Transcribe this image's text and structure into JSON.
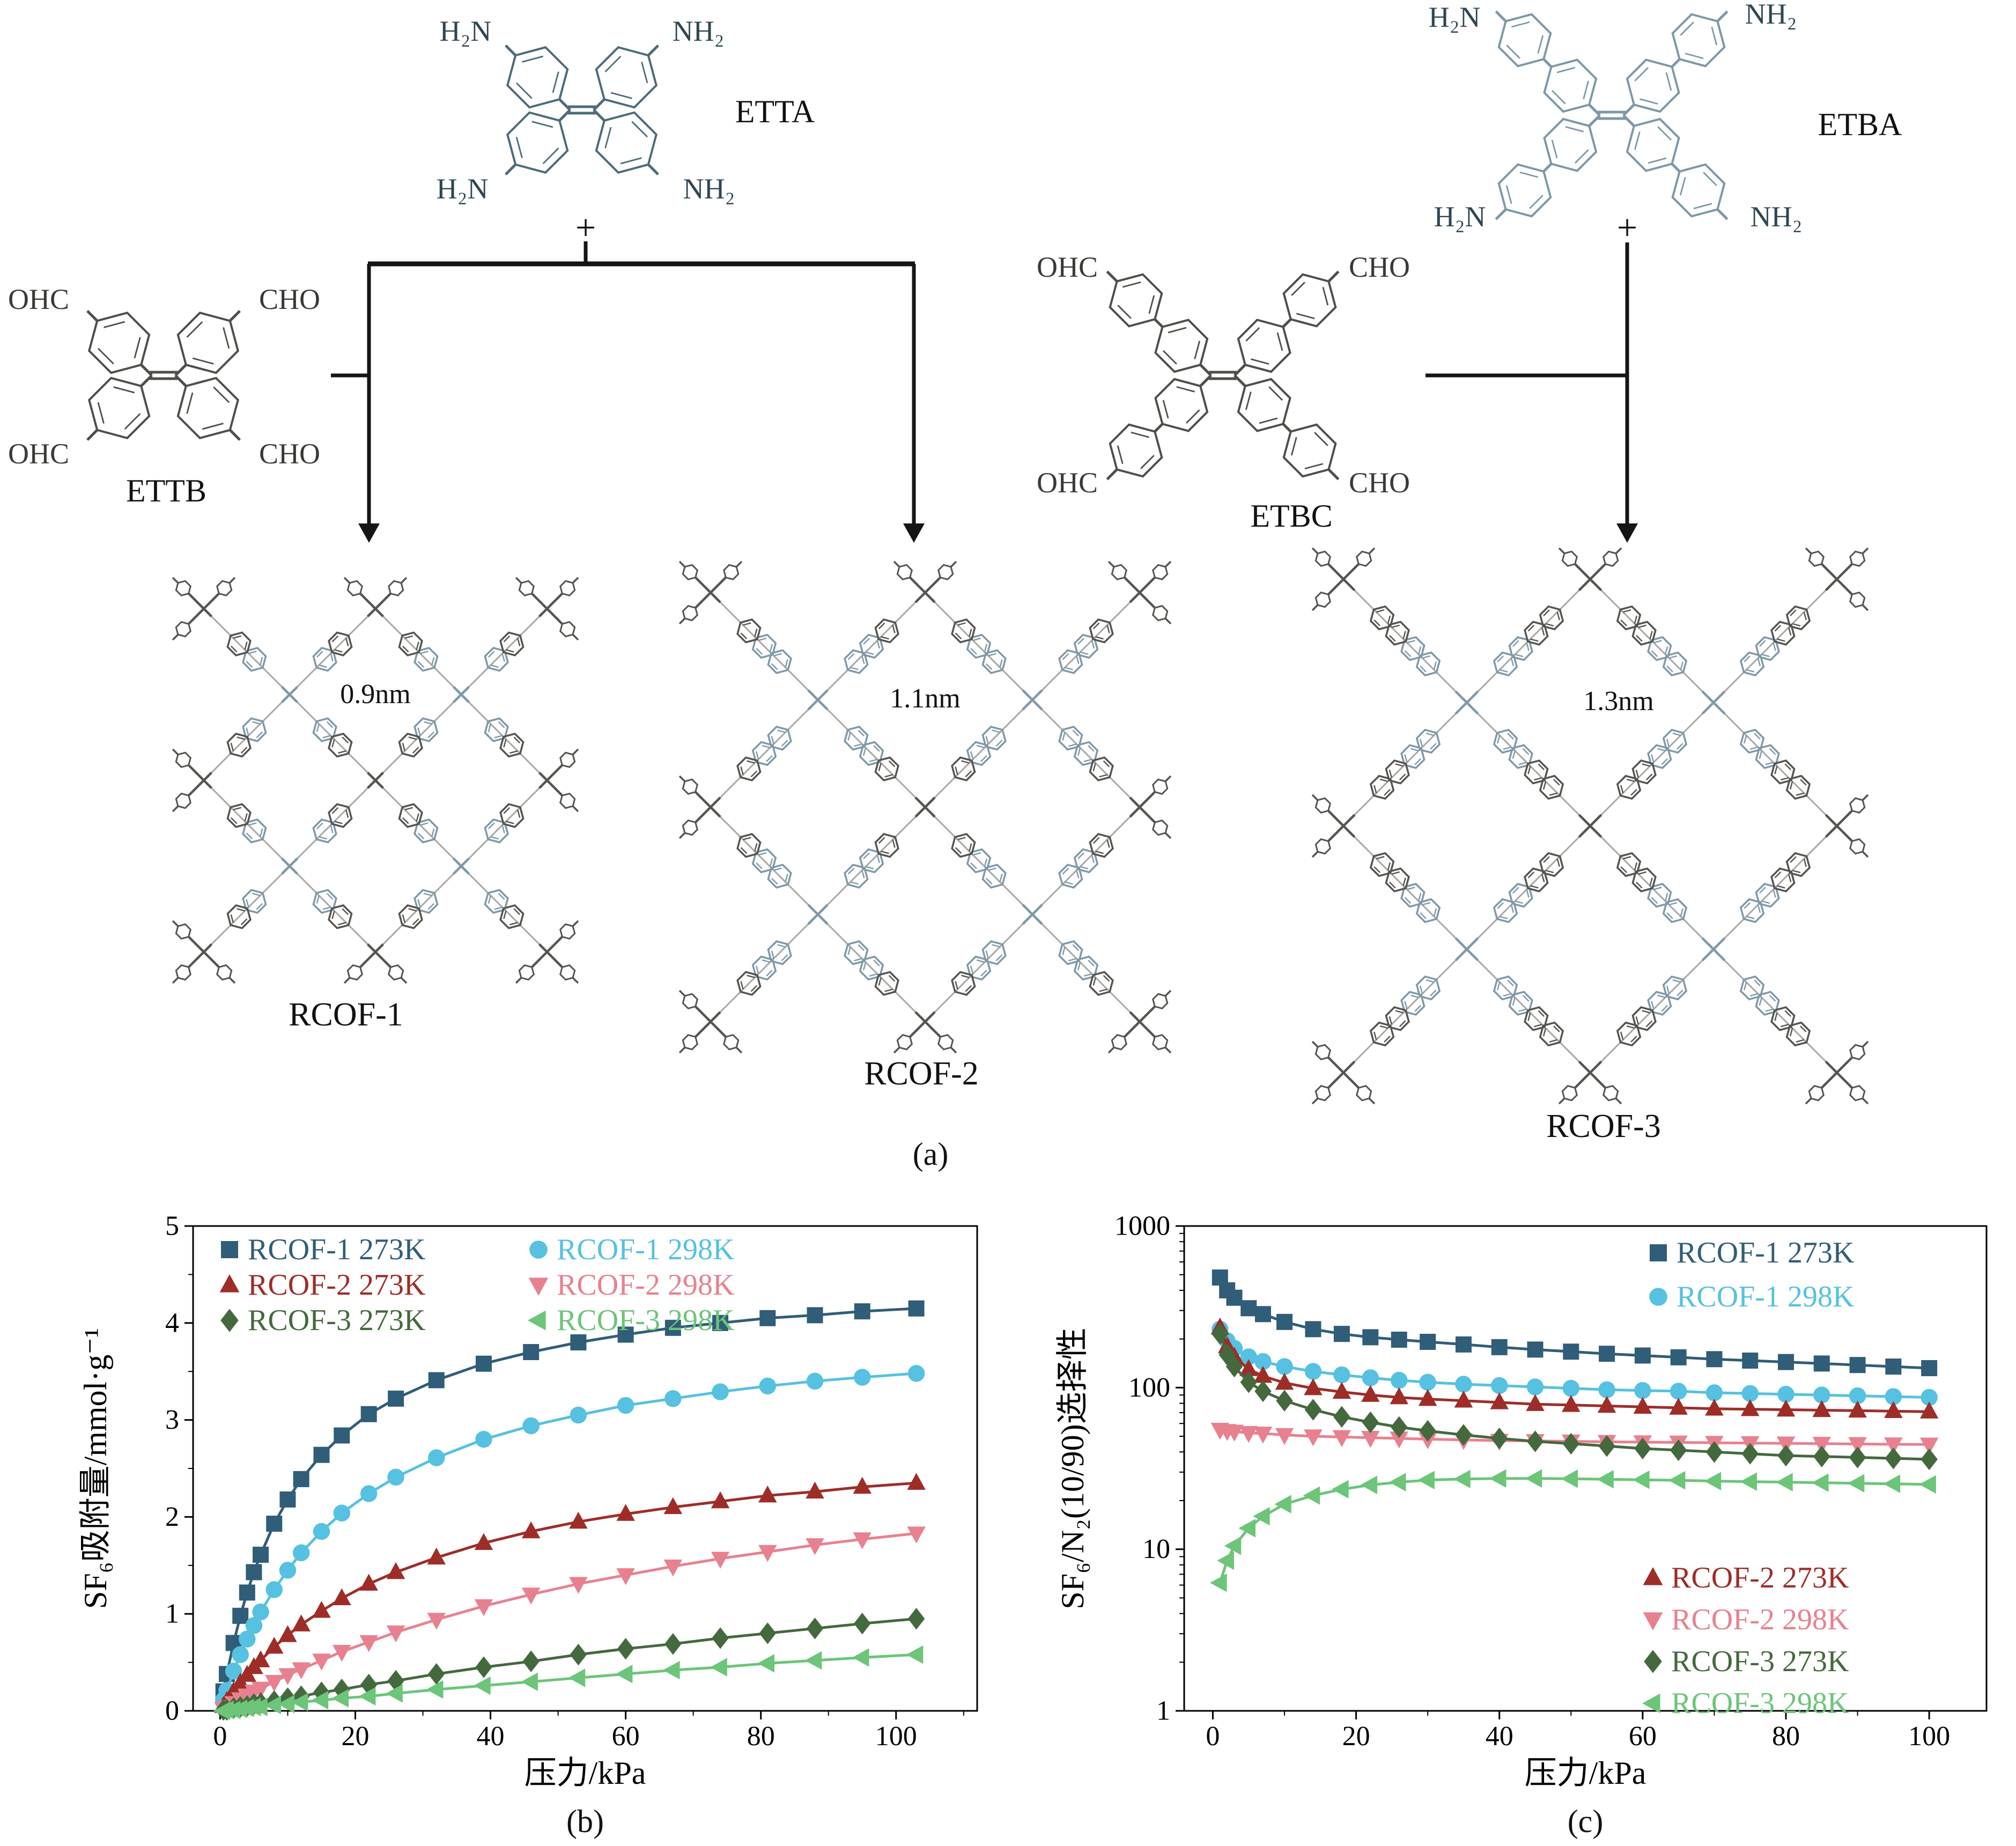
{
  "figure": {
    "caption_a": "(a)",
    "caption_b": "(b)",
    "caption_c": "(c)"
  },
  "panel_a": {
    "molecules": {
      "etta": {
        "name": "ETTA",
        "plus": "+",
        "color": "#4d6b7b",
        "groups": [
          "H₂N",
          "NH₂",
          "H₂N",
          "NH₂"
        ]
      },
      "etba": {
        "name": "ETBA",
        "plus": "+",
        "color": "#7d98a8",
        "groups": [
          "H₂N",
          "NH₂",
          "H₂N",
          "NH₂"
        ]
      },
      "ettb": {
        "name": "ETTB",
        "color": "#504e49",
        "groups": [
          "OHC",
          "CHO",
          "OHC",
          "CHO"
        ]
      },
      "etbc": {
        "name": "ETBC",
        "color": "#504e49",
        "groups": [
          "OHC",
          "CHO",
          "OHC",
          "CHO"
        ]
      }
    },
    "networks": [
      {
        "name": "RCOF-1",
        "pore": "0.9nm"
      },
      {
        "name": "RCOF-2",
        "pore": "1.1nm"
      },
      {
        "name": "RCOF-3",
        "pore": "1.3nm"
      }
    ],
    "colors": {
      "node_gray": "#56544f",
      "node_blue": "#7e99a9",
      "arrow": "#151515"
    }
  },
  "chart_data": [
    {
      "id": "b",
      "type": "line",
      "title": "",
      "xlabel": "压力/kPa",
      "ylabel": "SF₆吸附量/mmol·g⁻¹",
      "yscale": "linear",
      "xlim": [
        -4,
        112
      ],
      "xticks": [
        0,
        20,
        40,
        60,
        80,
        100
      ],
      "xminor": [
        10,
        30,
        50,
        70,
        90,
        110
      ],
      "ylim": [
        0,
        5
      ],
      "yticks": [
        0,
        1,
        2,
        3,
        4,
        5
      ],
      "yminor_step": 0.5,
      "x": [
        0.5,
        1,
        2,
        3,
        4,
        5,
        6,
        8,
        10,
        12,
        15,
        18,
        22,
        26,
        32,
        39,
        46,
        53,
        60,
        67,
        74,
        81,
        88,
        95,
        103
      ],
      "series": [
        {
          "name": "RCOF-1 273K",
          "color": "#305d78",
          "marker": "square",
          "values": [
            0.2,
            0.38,
            0.7,
            0.98,
            1.22,
            1.43,
            1.61,
            1.93,
            2.18,
            2.39,
            2.64,
            2.84,
            3.06,
            3.22,
            3.41,
            3.58,
            3.7,
            3.8,
            3.88,
            3.95,
            4.0,
            4.05,
            4.08,
            4.12,
            4.15
          ]
        },
        {
          "name": "RCOF-1 298K",
          "color": "#56c1e0",
          "marker": "circle",
          "values": [
            0.11,
            0.21,
            0.41,
            0.58,
            0.74,
            0.88,
            1.02,
            1.25,
            1.45,
            1.63,
            1.85,
            2.04,
            2.24,
            2.41,
            2.61,
            2.8,
            2.94,
            3.05,
            3.15,
            3.22,
            3.29,
            3.35,
            3.4,
            3.44,
            3.48
          ]
        },
        {
          "name": "RCOF-2 273K",
          "color": "#9e2d28",
          "marker": "triangle-up",
          "values": [
            0.05,
            0.1,
            0.2,
            0.29,
            0.37,
            0.45,
            0.52,
            0.66,
            0.78,
            0.89,
            1.03,
            1.16,
            1.31,
            1.43,
            1.58,
            1.73,
            1.85,
            1.95,
            2.03,
            2.1,
            2.16,
            2.22,
            2.26,
            2.31,
            2.35
          ]
        },
        {
          "name": "RCOF-2 298K",
          "color": "#e8818f",
          "marker": "triangle-down",
          "values": [
            0.02,
            0.04,
            0.08,
            0.12,
            0.16,
            0.2,
            0.23,
            0.3,
            0.37,
            0.43,
            0.52,
            0.61,
            0.71,
            0.81,
            0.94,
            1.08,
            1.2,
            1.31,
            1.4,
            1.49,
            1.57,
            1.64,
            1.71,
            1.77,
            1.83
          ]
        },
        {
          "name": "RCOF-3 273K",
          "color": "#44693d",
          "marker": "diamond",
          "values": [
            0.01,
            0.01,
            0.03,
            0.04,
            0.05,
            0.07,
            0.08,
            0.1,
            0.13,
            0.15,
            0.19,
            0.22,
            0.27,
            0.31,
            0.38,
            0.45,
            0.51,
            0.58,
            0.64,
            0.69,
            0.75,
            0.8,
            0.85,
            0.9,
            0.95
          ]
        },
        {
          "name": "RCOF-3 298K",
          "color": "#6cc579",
          "marker": "triangle-left",
          "values": [
            0.0,
            0.01,
            0.01,
            0.02,
            0.03,
            0.04,
            0.04,
            0.06,
            0.07,
            0.09,
            0.11,
            0.13,
            0.15,
            0.18,
            0.22,
            0.26,
            0.3,
            0.34,
            0.38,
            0.42,
            0.45,
            0.49,
            0.52,
            0.55,
            0.58
          ]
        }
      ]
    },
    {
      "id": "c",
      "type": "line",
      "title": "",
      "xlabel": "压力/kPa",
      "ylabel": "SF₆/N₂(10/90)选择性",
      "yscale": "log",
      "xlim": [
        -4,
        108
      ],
      "xticks": [
        0,
        20,
        40,
        60,
        80,
        100
      ],
      "xminor": [
        10,
        30,
        50,
        70,
        90
      ],
      "ylim": [
        1,
        1000
      ],
      "yticks": [
        1,
        10,
        100,
        1000
      ],
      "x": [
        1,
        2,
        3,
        5,
        7,
        10,
        14,
        18,
        22,
        26,
        30,
        35,
        40,
        45,
        50,
        55,
        60,
        65,
        70,
        75,
        80,
        85,
        90,
        95,
        100
      ],
      "series": [
        {
          "name": "RCOF-1 273K",
          "color": "#305d78",
          "marker": "square",
          "values": [
            480,
            400,
            360,
            310,
            285,
            255,
            230,
            215,
            205,
            198,
            192,
            185,
            178,
            172,
            167,
            162,
            158,
            154,
            150,
            147,
            144,
            141,
            138,
            135,
            132
          ]
        },
        {
          "name": "RCOF-1 298K",
          "color": "#56c1e0",
          "marker": "circle",
          "values": [
            230,
            195,
            175,
            155,
            145,
            135,
            126,
            120,
            115,
            111,
            108,
            105,
            103,
            101,
            99,
            97,
            96,
            95,
            93,
            92,
            91,
            90,
            89,
            88,
            87
          ]
        },
        {
          "name": "RCOF-2 273K",
          "color": "#9e2d28",
          "marker": "triangle-up",
          "values": [
            235,
            180,
            155,
            130,
            118,
            107,
            99,
            94,
            90,
            87,
            85,
            83,
            81,
            79,
            78,
            77,
            76,
            75,
            74,
            73.5,
            73,
            72.5,
            72,
            71.5,
            71
          ]
        },
        {
          "name": "RCOF-2 298K",
          "color": "#e8818f",
          "marker": "triangle-down",
          "values": [
            55,
            54,
            53.5,
            52.5,
            52,
            51,
            50,
            49.5,
            49,
            48.5,
            48,
            47.5,
            47,
            46.8,
            46.5,
            46.2,
            46,
            45.8,
            45.6,
            45.4,
            45.2,
            45,
            44.8,
            44.6,
            44.5
          ]
        },
        {
          "name": "RCOF-3 273K",
          "color": "#44693d",
          "marker": "diamond",
          "values": [
            215,
            160,
            135,
            108,
            95,
            83,
            73,
            66,
            61,
            57,
            54,
            51,
            48.5,
            46.5,
            45,
            43.5,
            42,
            41,
            40,
            39,
            38,
            37.5,
            37,
            36.5,
            36
          ]
        },
        {
          "name": "RCOF-3 298K",
          "color": "#6cc579",
          "marker": "triangle-left",
          "values": [
            6.2,
            8.5,
            10.5,
            13.5,
            16,
            19,
            21.5,
            23.5,
            25,
            26,
            26.8,
            27.2,
            27.4,
            27.4,
            27.3,
            27.1,
            26.9,
            26.7,
            26.4,
            26.2,
            26,
            25.8,
            25.6,
            25.4,
            25.2
          ]
        }
      ]
    }
  ]
}
